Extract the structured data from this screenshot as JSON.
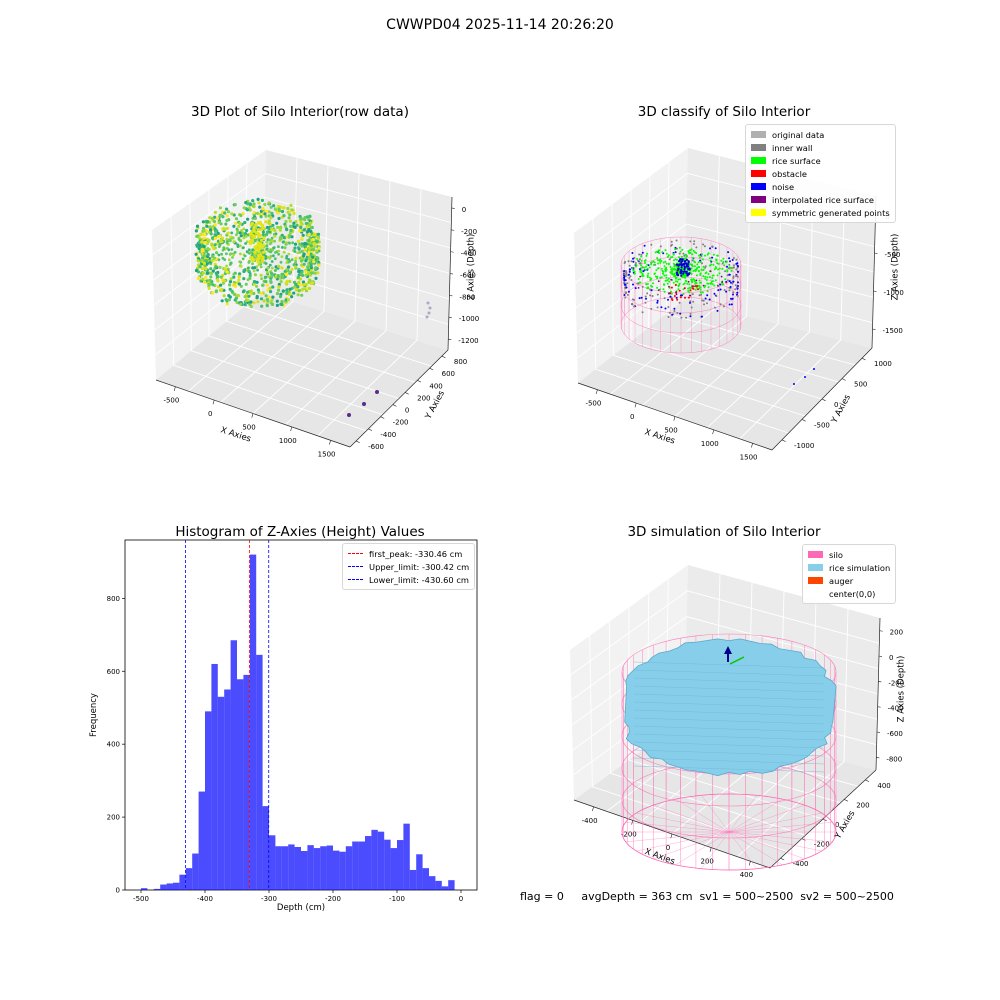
{
  "figure": {
    "title": "CWWPD04 2025-11-14 20:26:20",
    "footer": "flag = 0     avgDepth = 363 cm  sv1 = 500~2500  sv2 = 500~2500"
  },
  "colors": {
    "pink_wire": "#ff69b4",
    "sky_blue": "#87ceeb",
    "hist_blue": "#0000ff"
  },
  "chart_data": [
    {
      "type": "scatter3d",
      "title": "3D Plot of Silo Interior(row data)",
      "xlabel": "X Axies",
      "ylabel": "Y Axies",
      "zlabel": "Z Axies (Depth)",
      "x_ticks": [
        "-500",
        "0",
        "500",
        "1000",
        "1500"
      ],
      "y_ticks": [
        "-600",
        "-400",
        "-200",
        "0",
        "200",
        "400",
        "600",
        "800"
      ],
      "z_ticks": [
        "0",
        "-200",
        "-400",
        "-600",
        "-800",
        "-1000",
        "-1200"
      ],
      "outlier_points": [
        {
          "x": 1300,
          "y": -600,
          "z": -1200
        },
        {
          "x": 1400,
          "y": -500,
          "z": -1200
        },
        {
          "x": 1500,
          "y": -400,
          "z": -1200
        }
      ],
      "colormap": "viridis"
    },
    {
      "type": "scatter3d",
      "title": "3D classify of Silo Interior",
      "xlabel": "X Axies",
      "ylabel": "Y Axies",
      "zlabel": "Z Axies (Depth)",
      "x_ticks": [
        "-500",
        "0",
        "500",
        "1000",
        "1500"
      ],
      "y_ticks": [
        "-1000",
        "-500",
        "0",
        "500",
        "1000"
      ],
      "z_ticks": [
        "0",
        "-500",
        "-1000",
        "-1500"
      ],
      "legend_position": "top-right",
      "legend": [
        {
          "label": "original data",
          "color": "#b0b0b0"
        },
        {
          "label": "inner wall",
          "color": "#808080"
        },
        {
          "label": "rice surface",
          "color": "#00ff00"
        },
        {
          "label": "obstacle",
          "color": "#ff0000"
        },
        {
          "label": "noise",
          "color": "#0000ff"
        },
        {
          "label": "interpolated rice surface",
          "color": "#800080"
        },
        {
          "label": "symmetric generated points",
          "color": "#ffff00"
        }
      ]
    },
    {
      "type": "bar",
      "title": "Histogram of Z-Axies (Height) Values",
      "xlabel": "Depth (cm)",
      "ylabel": "Frequency",
      "xlim": [
        -525,
        25
      ],
      "ylim": [
        0,
        960
      ],
      "x_ticks": [
        -500,
        -400,
        -300,
        -200,
        -100,
        0
      ],
      "y_ticks": [
        0,
        200,
        400,
        600,
        800
      ],
      "bin_start": -500,
      "bin_width": 10,
      "values": [
        5,
        0,
        3,
        15,
        18,
        20,
        42,
        60,
        100,
        270,
        490,
        620,
        530,
        550,
        685,
        578,
        590,
        920,
        645,
        230,
        150,
        120,
        120,
        125,
        118,
        107,
        123,
        115,
        120,
        122,
        108,
        105,
        120,
        133,
        133,
        148,
        165,
        160,
        138,
        115,
        137,
        182,
        55,
        98,
        60,
        38,
        25,
        10,
        27
      ],
      "vlines": [
        {
          "label": "first_peak: -330.46 cm",
          "x": -330.46,
          "color": "#ff0000"
        },
        {
          "label": "Upper_limit: -300.42 cm",
          "x": -300.42,
          "color": "#0000ff"
        },
        {
          "label": "Lower_limit: -430.60 cm",
          "x": -430.6,
          "color": "#0000ff"
        }
      ],
      "legend_position": "top-right"
    },
    {
      "type": "surface3d",
      "title": "3D simulation of Silo Interior",
      "xlabel": "X Axies",
      "ylabel": "Y Axies",
      "zlabel": "Z Axies (Depth)",
      "x_ticks": [
        "-400",
        "-200",
        "0",
        "200",
        "400"
      ],
      "y_ticks": [
        "-400",
        "-200",
        "0",
        "200",
        "400"
      ],
      "z_ticks": [
        "200",
        "0",
        "-200",
        "-400",
        "-600",
        "-800"
      ],
      "legend_position": "top-right",
      "legend": [
        {
          "label": "silo",
          "color": "#ff69b4"
        },
        {
          "label": "rice simulation",
          "color": "#87ceeb"
        },
        {
          "label": "auger",
          "color": "#ff4500"
        },
        {
          "label": "center(0,0)",
          "color": "#ffffff"
        }
      ]
    }
  ]
}
